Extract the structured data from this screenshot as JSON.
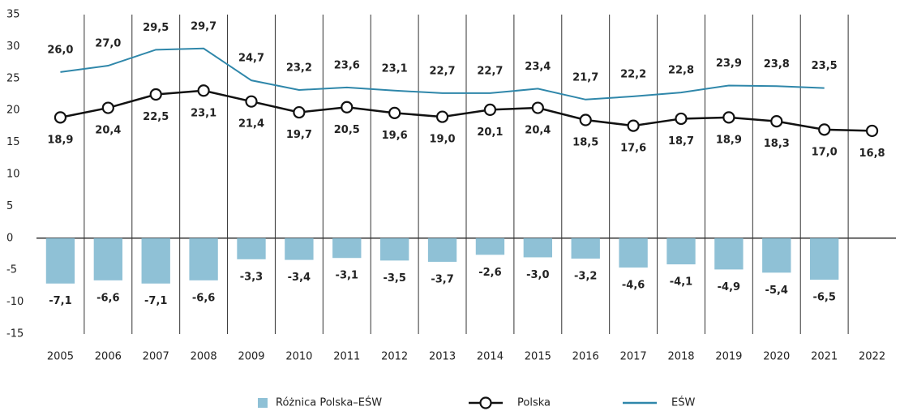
{
  "chart_data": {
    "type": "bar",
    "categories": [
      "2005",
      "2006",
      "2007",
      "2008",
      "2009",
      "2010",
      "2011",
      "2012",
      "2013",
      "2014",
      "2015",
      "2016",
      "2017",
      "2018",
      "2019",
      "2020",
      "2021",
      "2022"
    ],
    "series": [
      {
        "name": "Różnica Polska–EŚW",
        "type": "bar",
        "color": "#8fc1d6",
        "values": [
          -7.1,
          -6.6,
          -7.1,
          -6.6,
          -3.3,
          -3.4,
          -3.1,
          -3.5,
          -3.7,
          -2.6,
          -3.0,
          -3.2,
          -4.6,
          -4.1,
          -4.9,
          -5.4,
          -6.5,
          null
        ],
        "value_labels": [
          "-7,1",
          "-6,6",
          "-7,1",
          "-6,6",
          "-3,3",
          "-3,4",
          "-3,1",
          "-3,5",
          "-3,7",
          "-2,6",
          "-3,0",
          "-3,2",
          "-4,6",
          "-4,1",
          "-4,9",
          "-5,4",
          "-6,5",
          null
        ]
      },
      {
        "name": "Polska",
        "type": "line",
        "marker": "circle",
        "color": "#111111",
        "values": [
          18.9,
          20.4,
          22.5,
          23.1,
          21.4,
          19.7,
          20.5,
          19.6,
          19.0,
          20.1,
          20.4,
          18.5,
          17.6,
          18.7,
          18.9,
          18.3,
          17.0,
          16.8
        ],
        "value_labels": [
          "18,9",
          "20,4",
          "22,5",
          "23,1",
          "21,4",
          "19,7",
          "20,5",
          "19,6",
          "19,0",
          "20,1",
          "20,4",
          "18,5",
          "17,6",
          "18,7",
          "18,9",
          "18,3",
          "17,0",
          "16,8"
        ]
      },
      {
        "name": "EŚW",
        "type": "line",
        "color": "#2f87aa",
        "values": [
          26.0,
          27.0,
          29.5,
          29.7,
          24.7,
          23.2,
          23.6,
          23.1,
          22.7,
          22.7,
          23.4,
          21.7,
          22.2,
          22.8,
          23.9,
          23.8,
          23.5,
          null
        ],
        "value_labels": [
          "26,0",
          "27,0",
          "29,5",
          "29,7",
          "24,7",
          "23,2",
          "23,6",
          "23,1",
          "22,7",
          "22,7",
          "23,4",
          "21,7",
          "22,2",
          "22,8",
          "23,9",
          "23,8",
          "23,5",
          null
        ]
      }
    ],
    "ylim": [
      -15,
      35
    ],
    "yticks": [
      -15,
      -10,
      -5,
      0,
      5,
      10,
      15,
      20,
      25,
      30,
      35
    ],
    "legend": "bottom"
  }
}
